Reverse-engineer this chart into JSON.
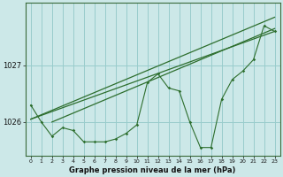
{
  "title": "Graphe pression niveau de la mer (hPa)",
  "bg_color": "#cce8e8",
  "grid_color": "#99cccc",
  "line_color": "#2d6e2d",
  "x_labels": [
    "0",
    "1",
    "2",
    "3",
    "4",
    "5",
    "6",
    "7",
    "8",
    "9",
    "10",
    "11",
    "12",
    "13",
    "14",
    "15",
    "16",
    "17",
    "18",
    "19",
    "20",
    "21",
    "22",
    "23"
  ],
  "yticks": [
    1026,
    1027
  ],
  "ylim": [
    1025.4,
    1028.1
  ],
  "xlim": [
    -0.5,
    23.5
  ],
  "pressure_data": [
    1026.3,
    1026.0,
    1025.75,
    1025.9,
    1025.85,
    1025.65,
    1025.65,
    1025.65,
    1025.7,
    1025.8,
    1025.95,
    1026.7,
    1026.85,
    1026.6,
    1026.55,
    1026.0,
    1025.55,
    1025.55,
    1026.4,
    1026.75,
    1026.9,
    1027.1,
    1027.7,
    1027.6
  ],
  "trend_line1": [
    [
      0,
      1026.05
    ],
    [
      23,
      1027.85
    ]
  ],
  "trend_line2": [
    [
      0,
      1026.05
    ],
    [
      23,
      1027.6
    ]
  ],
  "trend_line3": [
    [
      2,
      1026.0
    ],
    [
      23,
      1027.65
    ]
  ]
}
